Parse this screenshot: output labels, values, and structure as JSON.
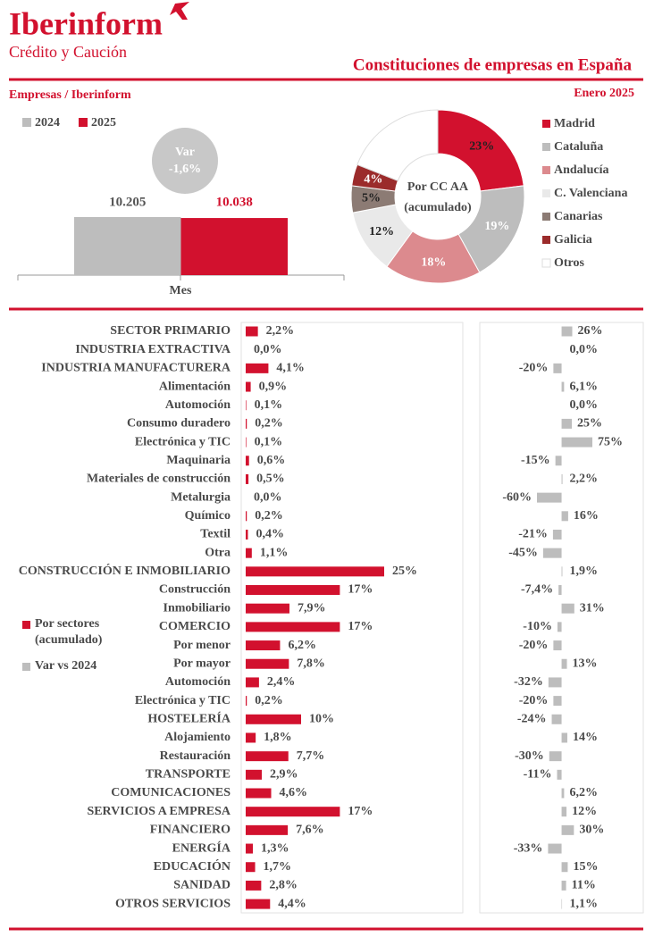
{
  "header": {
    "brand": "Iberinform",
    "tagline": "Crédito y Caución",
    "title": "Constituciones de empresas en España",
    "source": "Empresas / Iberinform",
    "period": "Enero 2025"
  },
  "chart_data": [
    {
      "type": "bar",
      "categories": [
        "Mes"
      ],
      "ylim": [
        0,
        10300
      ],
      "series": [
        {
          "name": "2024",
          "color": "#bdbdbd",
          "values": [
            10205
          ],
          "value_labels": [
            "10.205"
          ]
        },
        {
          "name": "2025",
          "color": "#d2112e",
          "values": [
            10038
          ],
          "value_labels": [
            "10.038"
          ]
        }
      ],
      "annotation": {
        "label": "Var",
        "value": "-1,6%"
      }
    },
    {
      "type": "pie",
      "title": "Por CC AA (acumulado)",
      "categories": [
        "Madrid",
        "Cataluña",
        "Andalucía",
        "C. Valenciana",
        "Canarias",
        "Galicia",
        "Otros"
      ],
      "values": [
        23,
        19,
        18,
        12,
        5,
        4,
        19
      ],
      "value_labels": [
        "23%",
        "19%",
        "18%",
        "12%",
        "5%",
        "4%",
        null
      ],
      "colors": [
        "#d2112e",
        "#bdbdbd",
        "#dc8a8e",
        "#e9e9e9",
        "#8c7b74",
        "#9b2b2b",
        "#ffffff"
      ],
      "label_colors": [
        "#222222",
        "#ffffff",
        "#ffffff",
        "#222222",
        "#222222",
        "#ffffff",
        "#222222"
      ]
    },
    {
      "type": "hbar",
      "categories": [
        "SECTOR PRIMARIO",
        "INDUSTRIA EXTRACTIVA",
        "INDUSTRIA MANUFACTURERA",
        "Alimentación",
        "Automoción",
        "Consumo duradero",
        "Electrónica y TIC",
        "Maquinaria",
        "Materiales de construcción",
        "Metalurgia",
        "Químico",
        "Textil",
        "Otra",
        "CONSTRUCCIÓN E INMOBILIARIO",
        "Construcción",
        "Inmobiliario",
        "COMERCIO",
        "Por menor",
        "Por mayor",
        "Automoción",
        "Electrónica y TIC",
        "HOSTELERÍA",
        "Alojamiento",
        "Restauración",
        "TRANSPORTE",
        "COMUNICACIONES",
        "SERVICIOS A EMPRESA",
        "FINANCIERO",
        "ENERGÍA",
        "EDUCACIÓN",
        "SANIDAD",
        "OTROS SERVICIOS"
      ],
      "xlim": [
        0,
        25
      ],
      "x2lim": [
        -60,
        75
      ],
      "series": [
        {
          "name": "Por sectores (acumulado)",
          "color": "#d2112e",
          "values": [
            2.2,
            0.0,
            4.1,
            0.9,
            0.1,
            0.2,
            0.1,
            0.6,
            0.5,
            0.0,
            0.2,
            0.4,
            1.1,
            25,
            17,
            7.9,
            17,
            6.2,
            7.8,
            2.4,
            0.2,
            10,
            1.8,
            7.7,
            2.9,
            4.6,
            17,
            7.6,
            1.3,
            1.7,
            2.8,
            4.4
          ],
          "value_labels": [
            "2,2%",
            "0,0%",
            "4,1%",
            "0,9%",
            "0,1%",
            "0,2%",
            "0,1%",
            "0,6%",
            "0,5%",
            "0,0%",
            "0,2%",
            "0,4%",
            "1,1%",
            "25%",
            "17%",
            "7,9%",
            "17%",
            "6,2%",
            "7,8%",
            "2,4%",
            "0,2%",
            "10%",
            "1,8%",
            "7,7%",
            "2,9%",
            "4,6%",
            "17%",
            "7,6%",
            "1,3%",
            "1,7%",
            "2,8%",
            "4,4%"
          ]
        },
        {
          "name": "Var vs 2024",
          "color": "#bdbdbd",
          "axis": "x2",
          "values": [
            26,
            0.0,
            -20,
            6.1,
            0.0,
            25,
            75,
            -15,
            2.2,
            -60,
            16,
            -21,
            -45,
            1.9,
            -7.4,
            31,
            -10,
            -20,
            13,
            -32,
            -20,
            -24,
            14,
            -30,
            -11,
            6.2,
            12,
            30,
            -33,
            15,
            11,
            1.1
          ],
          "value_labels": [
            "26%",
            "0,0%",
            "-20%",
            "6,1%",
            "0,0%",
            "25%",
            "75%",
            "-15%",
            "2,2%",
            "-60%",
            "16%",
            "-21%",
            "-45%",
            "1,9%",
            "-7,4%",
            "31%",
            "-10%",
            "-20%",
            "13%",
            "-32%",
            "-20%",
            "-24%",
            "14%",
            "-30%",
            "-11%",
            "6,2%",
            "12%",
            "30%",
            "-33%",
            "15%",
            "11%",
            "1,1%"
          ]
        }
      ]
    }
  ]
}
